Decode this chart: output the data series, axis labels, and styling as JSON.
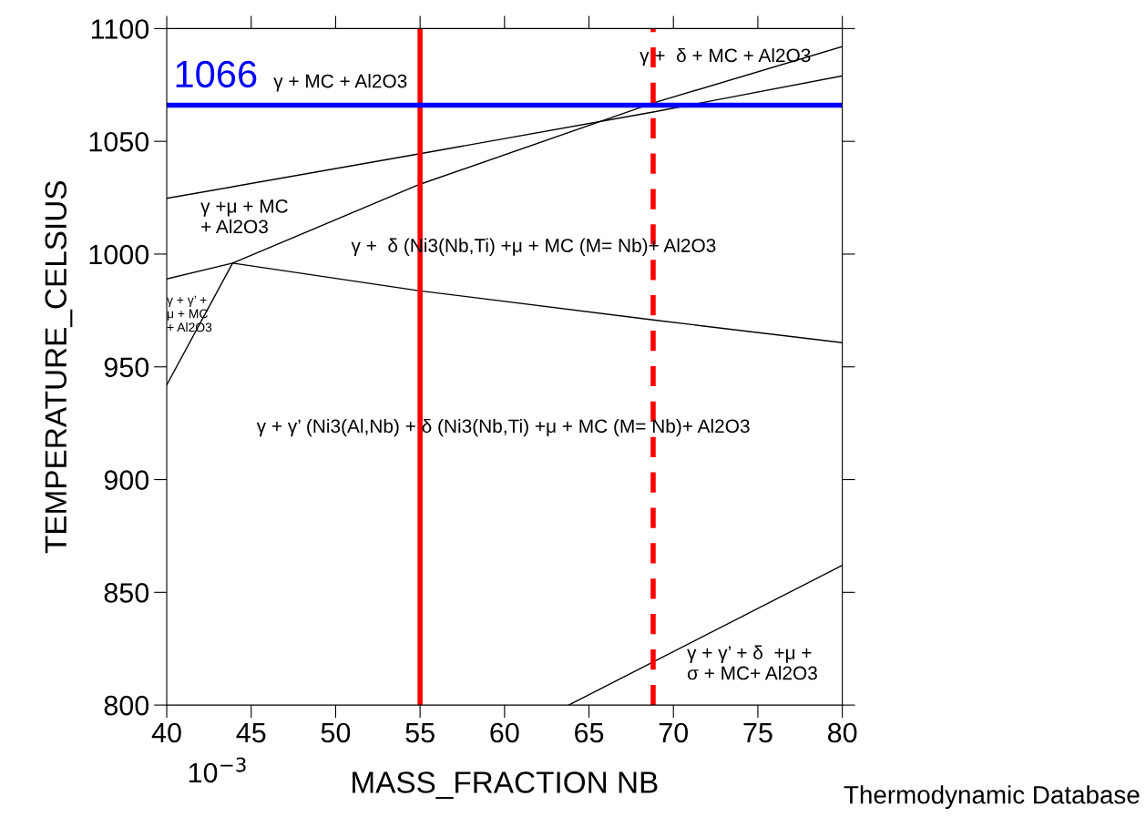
{
  "chart_data": {
    "type": "line",
    "xlabel": "MASS_FRACTION NB",
    "ylabel": "TEMPERATURE_CELSIUS",
    "xlim": [
      40,
      80
    ],
    "ylim": [
      800,
      1100
    ],
    "xticks": [
      40,
      45,
      50,
      55,
      60,
      65,
      70,
      75,
      80
    ],
    "yticks": [
      800,
      850,
      900,
      950,
      1000,
      1050,
      1100
    ],
    "series": [
      {
        "color": "#000000",
        "x": [
          40,
          55,
          68.8,
          80
        ],
        "values": [
          1024.7,
          1044.5,
          1063,
          1079
        ]
      },
      {
        "color": "#000000",
        "x": [
          40,
          43.9,
          55,
          68.8,
          80
        ],
        "values": [
          942,
          996,
          1031,
          1067,
          1092
        ]
      },
      {
        "color": "#000000",
        "x": [
          40,
          43.9,
          55,
          68.8,
          80
        ],
        "values": [
          989,
          996,
          983.7,
          970.8,
          960.7
        ]
      },
      {
        "color": "#000000",
        "x": [
          63.8,
          80
        ],
        "values": [
          800,
          862
        ]
      }
    ],
    "ref_lines": [
      {
        "axis": "x",
        "value": 55,
        "color": "#ff0000",
        "line_style": "solid"
      },
      {
        "axis": "x",
        "value": 68.8,
        "color": "#ff0000",
        "line_style": "dashed"
      },
      {
        "axis": "y",
        "value": 1066,
        "label": "1066",
        "color": "#0000ff",
        "line_style": "solid"
      }
    ],
    "annotations": [
      "γ + MC + Al2O3",
      "γ +  δ + MC + Al2O3",
      "γ +μ + MC\n+ Al2O3",
      "γ +  δ (Ni3(Nb,Ti) +μ + MC (M= Nb)+ Al2O3",
      "γ + γ’ +\nμ + MC\n+ Al2O3",
      "γ + γ’ (Ni3(Al,Nb) + δ (Ni3(Nb,Ti) +μ + MC (M= Nb)+ Al2O3",
      "γ + γ’ + δ  +μ +\nσ + MC+ Al2O3",
      "10$^{−3}$",
      "Thermodynamic Database"
    ]
  }
}
